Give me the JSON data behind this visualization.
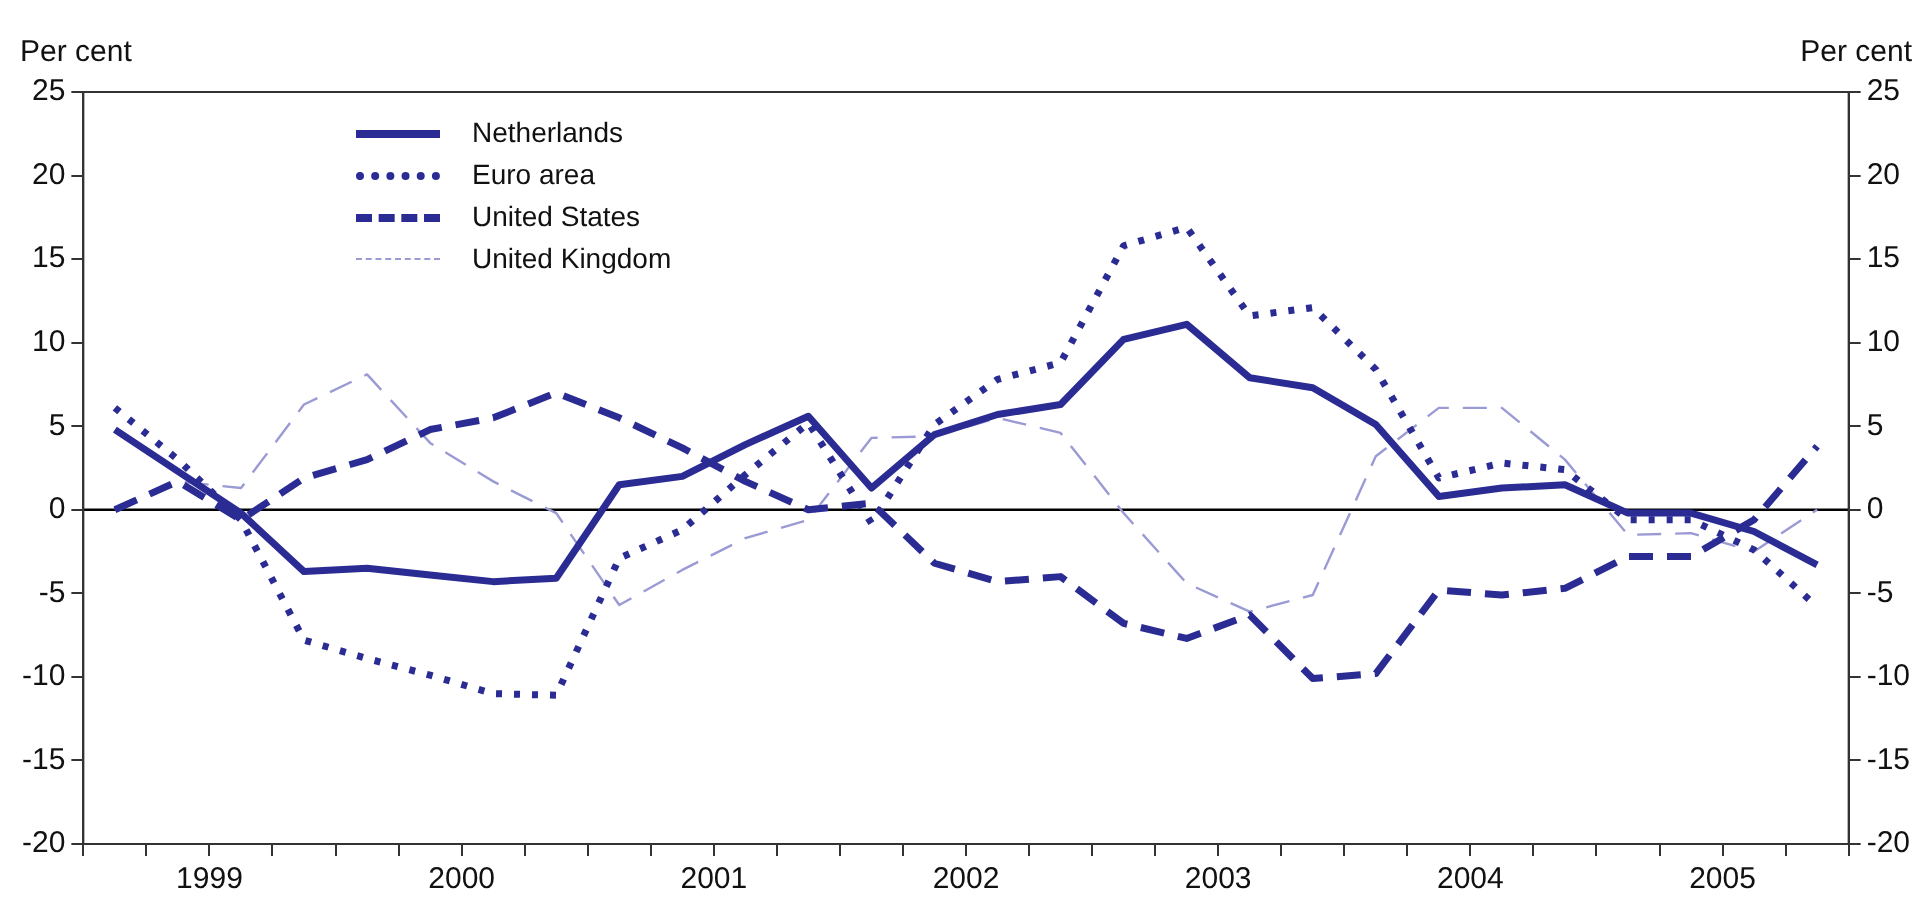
{
  "chart_data": {
    "type": "line",
    "ylabel": "Per cent",
    "y2label": "Per cent",
    "x": [
      1999.125,
      1999.375,
      1999.625,
      1999.875,
      2000.125,
      2000.375,
      2000.625,
      2000.875,
      2001.125,
      2001.375,
      2001.625,
      2001.875,
      2002.125,
      2002.375,
      2002.625,
      2002.875,
      2003.125,
      2003.375,
      2003.625,
      2003.875,
      2004.125,
      2004.375,
      2004.625,
      2004.875,
      2005.125,
      2005.375,
      2005.625,
      2005.875
    ],
    "series": [
      {
        "name": "Netherlands",
        "color": "#2b2b94",
        "line_style": "solid",
        "values": [
          4.8,
          2.3,
          -0.2,
          -3.7,
          -3.5,
          -3.9,
          -4.3,
          -4.1,
          1.5,
          2.0,
          3.9,
          5.6,
          1.3,
          4.5,
          5.7,
          6.3,
          10.2,
          11.1,
          7.9,
          7.3,
          5.1,
          0.8,
          1.3,
          1.5,
          -0.2,
          -0.2,
          -1.3,
          -3.3
        ]
      },
      {
        "name": "Euro area",
        "color": "#2b2b94",
        "line_style": "dotted",
        "values": [
          6.1,
          3.0,
          -0.6,
          -7.8,
          -8.9,
          -9.9,
          -11.0,
          -11.1,
          -2.9,
          -1.2,
          2.1,
          5.2,
          -0.8,
          5.1,
          7.8,
          8.8,
          15.8,
          16.9,
          11.6,
          12.1,
          8.4,
          1.9,
          2.8,
          2.4,
          -0.6,
          -0.6,
          -2.4,
          -5.8
        ]
      },
      {
        "name": "United States",
        "color": "#2b2b94",
        "line_style": "dashed",
        "values": [
          0,
          1.7,
          -0.6,
          1.9,
          3.0,
          4.8,
          5.5,
          7.0,
          5.5,
          3.7,
          1.7,
          0,
          0.4,
          -3.2,
          -4.3,
          -4.0,
          -6.8,
          -7.7,
          -6.3,
          -10.1,
          -9.8,
          -4.8,
          -5.1,
          -4.7,
          -2.8,
          -2.8,
          -0.6,
          3.8
        ]
      },
      {
        "name": "United Kingdom",
        "color": "#9a9ad4",
        "line_style": "dashed",
        "values": [
          0,
          1.7,
          1.3,
          6.3,
          8.1,
          4.0,
          1.7,
          -0.2,
          -5.7,
          -3.6,
          -1.7,
          -0.6,
          4.3,
          4.4,
          5.5,
          4.6,
          -0.2,
          -4.4,
          -6.1,
          -5.1,
          3.2,
          6.1,
          6.1,
          3.0,
          -1.5,
          -1.4,
          -2.5,
          0
        ]
      }
    ],
    "xlim": [
      1999,
      2006
    ],
    "xticks": [
      {
        "value": 1999,
        "label": null
      },
      {
        "value": 1999.25,
        "label": null
      },
      {
        "value": 1999.5,
        "label": "1999"
      },
      {
        "value": 1999.75,
        "label": null
      },
      {
        "value": 2000,
        "label": null
      },
      {
        "value": 2000.25,
        "label": null
      },
      {
        "value": 2000.5,
        "label": "2000"
      },
      {
        "value": 2000.75,
        "label": null
      },
      {
        "value": 2001,
        "label": null
      },
      {
        "value": 2001.25,
        "label": null
      },
      {
        "value": 2001.5,
        "label": "2001"
      },
      {
        "value": 2001.75,
        "label": null
      },
      {
        "value": 2002,
        "label": null
      },
      {
        "value": 2002.25,
        "label": null
      },
      {
        "value": 2002.5,
        "label": "2002"
      },
      {
        "value": 2002.75,
        "label": null
      },
      {
        "value": 2003,
        "label": null
      },
      {
        "value": 2003.25,
        "label": null
      },
      {
        "value": 2003.5,
        "label": "2003"
      },
      {
        "value": 2003.75,
        "label": null
      },
      {
        "value": 2004,
        "label": null
      },
      {
        "value": 2004.25,
        "label": null
      },
      {
        "value": 2004.5,
        "label": "2004"
      },
      {
        "value": 2004.75,
        "label": null
      },
      {
        "value": 2005,
        "label": null
      },
      {
        "value": 2005.25,
        "label": null
      },
      {
        "value": 2005.5,
        "label": "2005"
      },
      {
        "value": 2005.75,
        "label": null
      },
      {
        "value": 2006,
        "label": null
      }
    ],
    "ylim": [
      -20,
      25
    ],
    "yticks": [
      -20,
      -15,
      -10,
      -5,
      0,
      5,
      10,
      15,
      20,
      25
    ],
    "y2lim": [
      -20,
      25
    ],
    "y2ticks": [
      -20,
      -15,
      -10,
      -5,
      0,
      5,
      10,
      15,
      20,
      25
    ],
    "ref_lines": [
      {
        "axis": "y",
        "value": 0,
        "color": "#000000"
      }
    ],
    "grid": false,
    "legend": "top left",
    "marker": "none"
  }
}
